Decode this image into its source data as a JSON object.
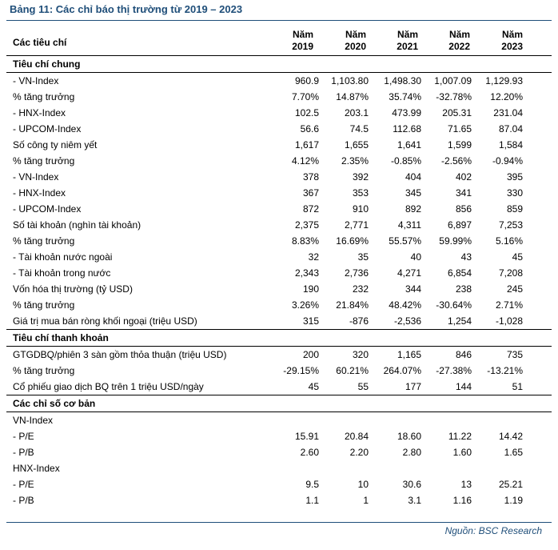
{
  "title": "Bảng 11: Các chỉ báo thị trường từ 2019 – 2023",
  "header": {
    "label": "Các tiêu chí",
    "years": [
      {
        "top": "Năm",
        "bottom": "2019"
      },
      {
        "top": "Năm",
        "bottom": "2020"
      },
      {
        "top": "Năm",
        "bottom": "2021"
      },
      {
        "top": "Năm",
        "bottom": "2022"
      },
      {
        "top": "Năm",
        "bottom": "2023"
      }
    ]
  },
  "sections": [
    {
      "title": "Tiêu chí chung",
      "rows": [
        {
          "label": "- VN-Index",
          "values": [
            "960.9",
            "1,103.80",
            "1,498.30",
            "1,007.09",
            "1,129.93"
          ]
        },
        {
          "label": "% tăng trưởng",
          "values": [
            "7.70%",
            "14.87%",
            "35.74%",
            "-32.78%",
            "12.20%"
          ]
        },
        {
          "label": "- HNX-Index",
          "values": [
            "102.5",
            "203.1",
            "473.99",
            "205.31",
            "231.04"
          ]
        },
        {
          "label": "- UPCOM-Index",
          "values": [
            "56.6",
            "74.5",
            "112.68",
            "71.65",
            "87.04"
          ]
        },
        {
          "label": "Số công ty niêm yết",
          "values": [
            "1,617",
            "1,655",
            "1,641",
            "1,599",
            "1,584"
          ]
        },
        {
          "label": "% tăng trưởng",
          "values": [
            "4.12%",
            "2.35%",
            "-0.85%",
            "-2.56%",
            "-0.94%"
          ]
        },
        {
          "label": "- VN-Index",
          "values": [
            "378",
            "392",
            "404",
            "402",
            "395"
          ]
        },
        {
          "label": "- HNX-Index",
          "values": [
            "367",
            "353",
            "345",
            "341",
            "330"
          ]
        },
        {
          "label": "- UPCOM-Index",
          "values": [
            "872",
            "910",
            "892",
            "856",
            "859"
          ]
        },
        {
          "label": "Số tài khoản (nghìn tài khoản)",
          "values": [
            "2,375",
            "2,771",
            "4,311",
            "6,897",
            "7,253"
          ]
        },
        {
          "label": "% tăng trưởng",
          "values": [
            "8.83%",
            "16.69%",
            "55.57%",
            "59.99%",
            "5.16%"
          ]
        },
        {
          "label": "- Tài khoản nước ngoài",
          "values": [
            "32",
            "35",
            "40",
            "43",
            "45"
          ]
        },
        {
          "label": "- Tài khoản trong nước",
          "values": [
            "2,343",
            "2,736",
            "4,271",
            "6,854",
            "7,208"
          ]
        },
        {
          "label": "Vốn hóa thị trường (tỷ USD)",
          "values": [
            "190",
            "232",
            "344",
            "238",
            "245"
          ]
        },
        {
          "label": "% tăng trưởng",
          "values": [
            "3.26%",
            "21.84%",
            "48.42%",
            "-30.64%",
            "2.71%"
          ]
        },
        {
          "label": "Giá trị mua bán ròng khối ngoại (triệu USD)",
          "values": [
            "315",
            "-876",
            "-2,536",
            "1,254",
            "-1,028"
          ]
        }
      ]
    },
    {
      "title": "Tiêu chí thanh khoản",
      "rows": [
        {
          "label": "GTGDBQ/phiên 3 sàn gồm thỏa thuận (triệu USD)",
          "values": [
            "200",
            "320",
            "1,165",
            "846",
            "735"
          ]
        },
        {
          "label": "% tăng trưởng",
          "values": [
            "-29.15%",
            "60.21%",
            "264.07%",
            "-27.38%",
            "-13.21%"
          ]
        },
        {
          "label": "Cổ phiếu giao dịch BQ trên 1 triệu USD/ngày",
          "values": [
            "45",
            "55",
            "177",
            "144",
            "51"
          ]
        }
      ]
    },
    {
      "title": "Các chỉ số cơ bản",
      "rows": [
        {
          "label": "VN-Index",
          "values": [
            "",
            "",
            "",
            "",
            ""
          ]
        },
        {
          "label": "- P/E",
          "values": [
            "15.91",
            "20.84",
            "18.60",
            "11.22",
            "14.42"
          ]
        },
        {
          "label": "- P/B",
          "values": [
            "2.60",
            "2.20",
            "2.80",
            "1.60",
            "1.65"
          ]
        },
        {
          "label": "HNX-Index",
          "values": [
            "",
            "",
            "",
            "",
            ""
          ]
        },
        {
          "label": "- P/E",
          "values": [
            "9.5",
            "10",
            "30.6",
            "13",
            "25.21"
          ]
        },
        {
          "label": "- P/B",
          "values": [
            "1.1",
            "1",
            "3.1",
            "1.16",
            "1.19"
          ]
        }
      ]
    }
  ],
  "source": "Nguồn: BSC Research"
}
